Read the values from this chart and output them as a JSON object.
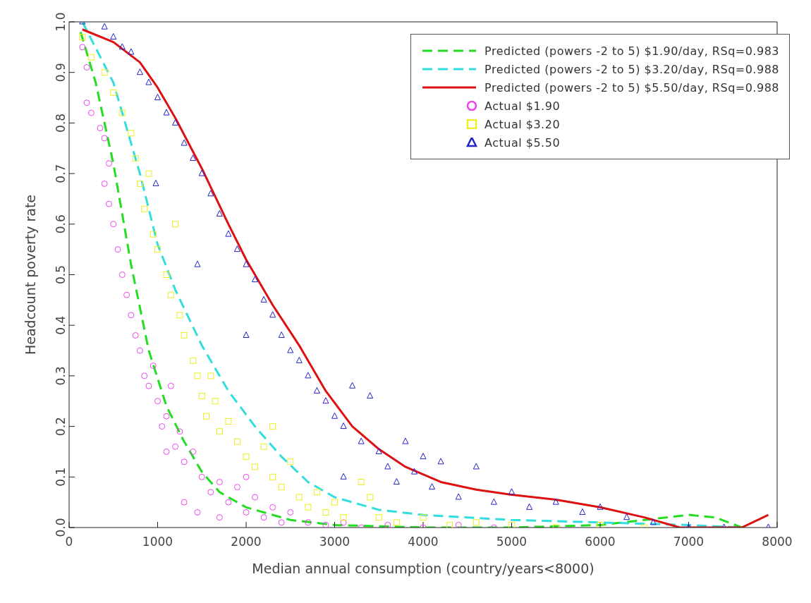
{
  "chart_data": {
    "type": "scatter",
    "xlabel": "Median annual consumption (country/years<8000)",
    "ylabel": "Headcount poverty rate",
    "xlim": [
      0,
      8000
    ],
    "xticks": [
      0,
      1000,
      2000,
      3000,
      4000,
      5000,
      6000,
      7000,
      8000
    ],
    "ylim": [
      0,
      1
    ],
    "yticks": [
      {
        "value": 0,
        "label": "0.0"
      },
      0.1,
      0.2,
      0.3,
      0.4,
      0.5,
      0.6,
      0.7,
      0.8,
      0.9,
      {
        "value": 1,
        "label": "1.0"
      }
    ],
    "grid": false,
    "legend": "top right",
    "series": [
      {
        "name": "Predicted (powers -2 to 5) $1.90/day, RSq=0.983",
        "type": "line",
        "line_style": "dashed",
        "marker": "none",
        "color": "#22dd22",
        "x": [
          130,
          300,
          500,
          700,
          900,
          1100,
          1300,
          1500,
          1700,
          2000,
          2500,
          3000,
          4000,
          5000,
          6000,
          6500,
          7000,
          7300,
          7600
        ],
        "values": [
          0.98,
          0.88,
          0.72,
          0.52,
          0.35,
          0.24,
          0.17,
          0.11,
          0.07,
          0.04,
          0.015,
          0.005,
          0,
          0,
          0.005,
          0.015,
          0.025,
          0.02,
          0
        ]
      },
      {
        "name": "Predicted (powers -2 to 5) $3.20/day, RSq=0.988",
        "type": "line",
        "line_style": "dashed",
        "marker": "none",
        "color": "#33dddd",
        "x": [
          150,
          500,
          800,
          1000,
          1200,
          1500,
          1800,
          2100,
          2400,
          2700,
          3000,
          3500,
          4000,
          5000,
          6000,
          7000,
          7600
        ],
        "values": [
          1,
          0.88,
          0.7,
          0.56,
          0.47,
          0.36,
          0.27,
          0.2,
          0.14,
          0.09,
          0.06,
          0.035,
          0.025,
          0.015,
          0.01,
          0.005,
          0
        ]
      },
      {
        "name": "Predicted (powers -2 to 5) $5.50/day, RSq=0.988",
        "type": "line",
        "line_style": "solid",
        "marker": "none",
        "color": "#dd1111",
        "x": [
          150,
          500,
          800,
          1000,
          1200,
          1500,
          1800,
          2000,
          2300,
          2600,
          2900,
          3200,
          3500,
          3800,
          4200,
          4600,
          5000,
          5500,
          6000,
          6500,
          6900,
          7600,
          7900
        ],
        "values": [
          0.985,
          0.96,
          0.92,
          0.87,
          0.81,
          0.71,
          0.6,
          0.53,
          0.44,
          0.36,
          0.27,
          0.2,
          0.155,
          0.12,
          0.09,
          0.075,
          0.065,
          0.055,
          0.04,
          0.02,
          0,
          0,
          0.025
        ]
      },
      {
        "name": "Actual $1.90",
        "marker": "circle",
        "color": "#ee44ee",
        "x": [
          150,
          200,
          200,
          250,
          350,
          400,
          450,
          400,
          450,
          500,
          550,
          600,
          650,
          700,
          750,
          800,
          850,
          900,
          950,
          1000,
          1050,
          1100,
          1200,
          1250,
          1300,
          1400,
          1500,
          1600,
          1700,
          1800,
          1900,
          2000,
          2100,
          2200,
          2300,
          2400,
          2500,
          2700,
          2900,
          3100,
          3300,
          3600,
          4000,
          4400,
          4800,
          1150,
          1300,
          1450,
          1100,
          1700,
          2000
        ],
        "values": [
          0.95,
          0.91,
          0.84,
          0.82,
          0.79,
          0.77,
          0.72,
          0.68,
          0.64,
          0.6,
          0.55,
          0.5,
          0.46,
          0.42,
          0.38,
          0.35,
          0.3,
          0.28,
          0.32,
          0.25,
          0.2,
          0.22,
          0.16,
          0.19,
          0.13,
          0.15,
          0.1,
          0.07,
          0.09,
          0.05,
          0.08,
          0.03,
          0.06,
          0.02,
          0.04,
          0.01,
          0.03,
          0.01,
          0.005,
          0.01,
          0,
          0.005,
          0,
          0.005,
          0,
          0.28,
          0.05,
          0.03,
          0.15,
          0.02,
          0.1
        ]
      },
      {
        "name": "Actual $3.20",
        "marker": "square",
        "color": "#eeee22",
        "x": [
          150,
          250,
          400,
          500,
          600,
          700,
          750,
          800,
          850,
          950,
          1000,
          1100,
          1150,
          1250,
          1300,
          1400,
          1450,
          1500,
          1550,
          1650,
          1700,
          1800,
          1900,
          2000,
          2100,
          2200,
          2300,
          2400,
          2500,
          2600,
          2700,
          2800,
          2900,
          3000,
          3100,
          3300,
          3400,
          3500,
          3700,
          4000,
          4300,
          4600,
          5000,
          5500,
          6000,
          6500,
          1200,
          900,
          1600,
          2300
        ],
        "values": [
          0.97,
          0.93,
          0.9,
          0.86,
          0.82,
          0.78,
          0.73,
          0.68,
          0.63,
          0.58,
          0.55,
          0.5,
          0.46,
          0.42,
          0.38,
          0.33,
          0.3,
          0.26,
          0.22,
          0.25,
          0.19,
          0.21,
          0.17,
          0.14,
          0.12,
          0.16,
          0.1,
          0.08,
          0.13,
          0.06,
          0.04,
          0.07,
          0.03,
          0.05,
          0.02,
          0.09,
          0.06,
          0.02,
          0.01,
          0.02,
          0.005,
          0.01,
          0.005,
          0,
          0.005,
          0,
          0.6,
          0.7,
          0.3,
          0.2
        ]
      },
      {
        "name": "Actual $5.50",
        "marker": "triangle",
        "color": "#2222cc",
        "x": [
          150,
          400,
          500,
          600,
          700,
          800,
          900,
          1000,
          1100,
          1200,
          1300,
          1400,
          1500,
          1600,
          1700,
          1800,
          1900,
          2000,
          2100,
          2200,
          2300,
          2400,
          2500,
          2600,
          2700,
          2800,
          2900,
          3000,
          3100,
          3200,
          3300,
          3400,
          3500,
          3600,
          3700,
          3800,
          3900,
          4000,
          4100,
          4200,
          4400,
          4600,
          4800,
          5000,
          5200,
          5500,
          5800,
          6000,
          6300,
          6600,
          7000,
          7400,
          7900,
          3100,
          980,
          1450,
          2000
        ],
        "values": [
          1,
          0.99,
          0.97,
          0.95,
          0.94,
          0.9,
          0.88,
          0.85,
          0.82,
          0.8,
          0.76,
          0.73,
          0.7,
          0.66,
          0.62,
          0.58,
          0.55,
          0.52,
          0.49,
          0.45,
          0.42,
          0.38,
          0.35,
          0.33,
          0.3,
          0.27,
          0.25,
          0.22,
          0.2,
          0.28,
          0.17,
          0.26,
          0.15,
          0.12,
          0.09,
          0.17,
          0.11,
          0.14,
          0.08,
          0.13,
          0.06,
          0.12,
          0.05,
          0.07,
          0.04,
          0.05,
          0.03,
          0.04,
          0.02,
          0.01,
          0,
          0,
          0,
          0.1,
          0.68,
          0.52,
          0.38
        ]
      }
    ]
  }
}
